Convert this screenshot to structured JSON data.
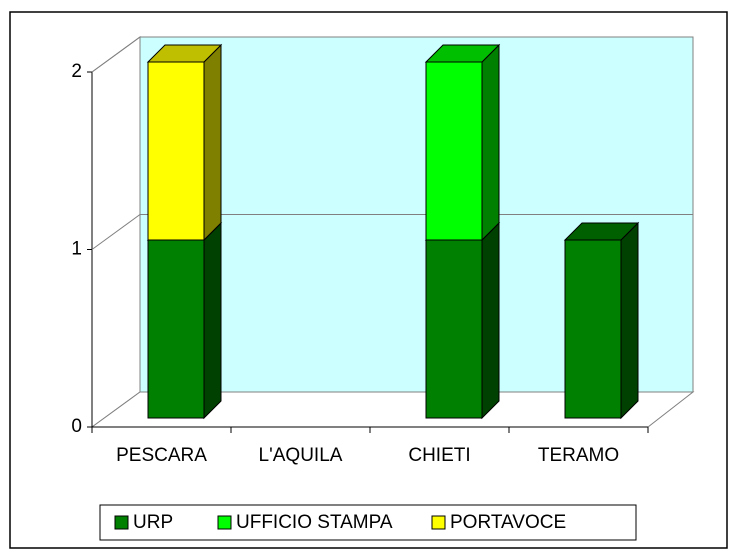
{
  "chart_data": {
    "type": "bar3d_stacked",
    "categories": [
      "PESCARA",
      "L'AQUILA",
      "CHIETI",
      "TERAMO"
    ],
    "series": [
      {
        "name": "URP",
        "color": "#008000",
        "values": [
          1,
          0,
          1,
          1
        ]
      },
      {
        "name": "UFFICIO STAMPA",
        "color": "#00ff00",
        "values": [
          0,
          0,
          1,
          0
        ]
      },
      {
        "name": "PORTAVOCE",
        "color": "#ffff00",
        "values": [
          1,
          0,
          0,
          0
        ]
      }
    ],
    "ylim": [
      0,
      2
    ],
    "yticks": [
      0,
      1,
      2
    ],
    "grid": true,
    "legend": "bottom"
  }
}
